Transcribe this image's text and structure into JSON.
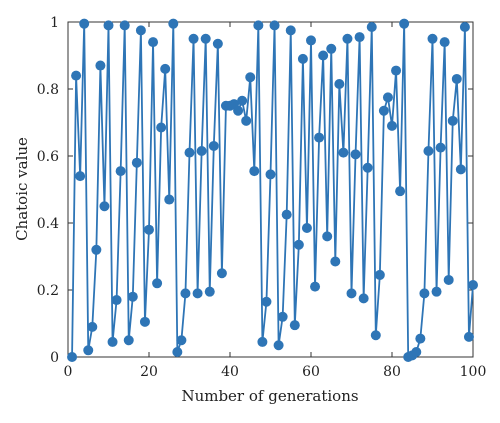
{
  "chart_data": {
    "type": "line",
    "title": "",
    "xlabel": "Number of generations",
    "ylabel": "Chatoic value",
    "xlim": [
      0,
      100
    ],
    "ylim": [
      0,
      1
    ],
    "xticks": [
      "0",
      "20",
      "40",
      "60",
      "80",
      "100"
    ],
    "yticks": [
      "0",
      "0.2",
      "0.4",
      "0.6",
      "0.8",
      "1"
    ],
    "grid": false,
    "legend": "none",
    "markers": true,
    "series": [
      {
        "color": "#2E75B6",
        "x": [
          1,
          2,
          3,
          4,
          5,
          6,
          7,
          8,
          9,
          10,
          11,
          12,
          13,
          14,
          15,
          16,
          17,
          18,
          19,
          20,
          21,
          22,
          23,
          24,
          25,
          26,
          27,
          28,
          29,
          30,
          31,
          32,
          33,
          34,
          35,
          36,
          37,
          38,
          39,
          40,
          41,
          42,
          43,
          44,
          45,
          46,
          47,
          48,
          49,
          50,
          51,
          52,
          53,
          54,
          55,
          56,
          57,
          58,
          59,
          60,
          61,
          62,
          63,
          64,
          65,
          66,
          67,
          68,
          69,
          70,
          71,
          72,
          73,
          74,
          75,
          76,
          77,
          78,
          79,
          80,
          81,
          82,
          83,
          84,
          85,
          86,
          87,
          88,
          89,
          90,
          91,
          92,
          93,
          94,
          95,
          96,
          97,
          98,
          99,
          100
        ],
        "y": [
          0.0,
          0.84,
          0.54,
          0.995,
          0.02,
          0.09,
          0.32,
          0.87,
          0.45,
          0.99,
          0.045,
          0.17,
          0.555,
          0.99,
          0.05,
          0.18,
          0.58,
          0.975,
          0.105,
          0.38,
          0.94,
          0.22,
          0.685,
          0.86,
          0.47,
          0.995,
          0.015,
          0.05,
          0.19,
          0.61,
          0.95,
          0.19,
          0.615,
          0.95,
          0.195,
          0.63,
          0.935,
          0.25,
          0.75,
          0.75,
          0.755,
          0.735,
          0.765,
          0.705,
          0.835,
          0.555,
          0.99,
          0.045,
          0.165,
          0.545,
          0.99,
          0.035,
          0.12,
          0.425,
          0.975,
          0.095,
          0.335,
          0.89,
          0.385,
          0.945,
          0.21,
          0.655,
          0.9,
          0.36,
          0.92,
          0.285,
          0.815,
          0.61,
          0.95,
          0.19,
          0.605,
          0.955,
          0.175,
          0.565,
          0.985,
          0.065,
          0.245,
          0.735,
          0.775,
          0.69,
          0.855,
          0.495,
          0.995,
          0.0,
          0.005,
          0.015,
          0.055,
          0.19,
          0.615,
          0.95,
          0.195,
          0.625,
          0.94,
          0.23,
          0.705,
          0.83,
          0.56,
          0.985,
          0.06,
          0.215
        ]
      }
    ]
  }
}
